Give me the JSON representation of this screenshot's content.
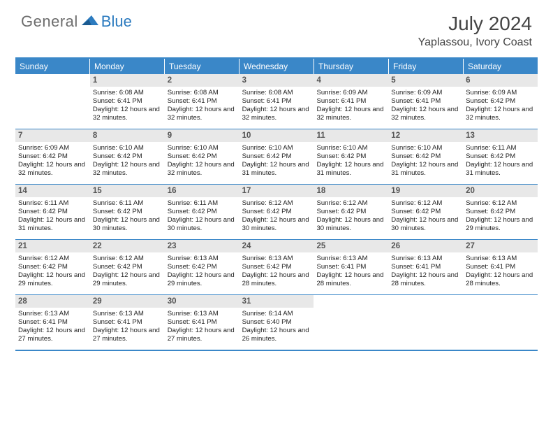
{
  "logo": {
    "general": "General",
    "blue": "Blue"
  },
  "title": "July 2024",
  "location": "Yaplassou, Ivory Coast",
  "colors": {
    "header_bg": "#3a87c8",
    "header_text": "#ffffff",
    "daynum_bg": "#e8e8e8",
    "border": "#3a87c8",
    "logo_gray": "#6d6d6d",
    "logo_blue": "#2c7bbf"
  },
  "weekdays": [
    "Sunday",
    "Monday",
    "Tuesday",
    "Wednesday",
    "Thursday",
    "Friday",
    "Saturday"
  ],
  "weeks": [
    [
      {
        "empty": true
      },
      {
        "day": "1",
        "sunrise": "Sunrise: 6:08 AM",
        "sunset": "Sunset: 6:41 PM",
        "daylight": "Daylight: 12 hours and 32 minutes."
      },
      {
        "day": "2",
        "sunrise": "Sunrise: 6:08 AM",
        "sunset": "Sunset: 6:41 PM",
        "daylight": "Daylight: 12 hours and 32 minutes."
      },
      {
        "day": "3",
        "sunrise": "Sunrise: 6:08 AM",
        "sunset": "Sunset: 6:41 PM",
        "daylight": "Daylight: 12 hours and 32 minutes."
      },
      {
        "day": "4",
        "sunrise": "Sunrise: 6:09 AM",
        "sunset": "Sunset: 6:41 PM",
        "daylight": "Daylight: 12 hours and 32 minutes."
      },
      {
        "day": "5",
        "sunrise": "Sunrise: 6:09 AM",
        "sunset": "Sunset: 6:41 PM",
        "daylight": "Daylight: 12 hours and 32 minutes."
      },
      {
        "day": "6",
        "sunrise": "Sunrise: 6:09 AM",
        "sunset": "Sunset: 6:42 PM",
        "daylight": "Daylight: 12 hours and 32 minutes."
      }
    ],
    [
      {
        "day": "7",
        "sunrise": "Sunrise: 6:09 AM",
        "sunset": "Sunset: 6:42 PM",
        "daylight": "Daylight: 12 hours and 32 minutes."
      },
      {
        "day": "8",
        "sunrise": "Sunrise: 6:10 AM",
        "sunset": "Sunset: 6:42 PM",
        "daylight": "Daylight: 12 hours and 32 minutes."
      },
      {
        "day": "9",
        "sunrise": "Sunrise: 6:10 AM",
        "sunset": "Sunset: 6:42 PM",
        "daylight": "Daylight: 12 hours and 32 minutes."
      },
      {
        "day": "10",
        "sunrise": "Sunrise: 6:10 AM",
        "sunset": "Sunset: 6:42 PM",
        "daylight": "Daylight: 12 hours and 31 minutes."
      },
      {
        "day": "11",
        "sunrise": "Sunrise: 6:10 AM",
        "sunset": "Sunset: 6:42 PM",
        "daylight": "Daylight: 12 hours and 31 minutes."
      },
      {
        "day": "12",
        "sunrise": "Sunrise: 6:10 AM",
        "sunset": "Sunset: 6:42 PM",
        "daylight": "Daylight: 12 hours and 31 minutes."
      },
      {
        "day": "13",
        "sunrise": "Sunrise: 6:11 AM",
        "sunset": "Sunset: 6:42 PM",
        "daylight": "Daylight: 12 hours and 31 minutes."
      }
    ],
    [
      {
        "day": "14",
        "sunrise": "Sunrise: 6:11 AM",
        "sunset": "Sunset: 6:42 PM",
        "daylight": "Daylight: 12 hours and 31 minutes."
      },
      {
        "day": "15",
        "sunrise": "Sunrise: 6:11 AM",
        "sunset": "Sunset: 6:42 PM",
        "daylight": "Daylight: 12 hours and 30 minutes."
      },
      {
        "day": "16",
        "sunrise": "Sunrise: 6:11 AM",
        "sunset": "Sunset: 6:42 PM",
        "daylight": "Daylight: 12 hours and 30 minutes."
      },
      {
        "day": "17",
        "sunrise": "Sunrise: 6:12 AM",
        "sunset": "Sunset: 6:42 PM",
        "daylight": "Daylight: 12 hours and 30 minutes."
      },
      {
        "day": "18",
        "sunrise": "Sunrise: 6:12 AM",
        "sunset": "Sunset: 6:42 PM",
        "daylight": "Daylight: 12 hours and 30 minutes."
      },
      {
        "day": "19",
        "sunrise": "Sunrise: 6:12 AM",
        "sunset": "Sunset: 6:42 PM",
        "daylight": "Daylight: 12 hours and 30 minutes."
      },
      {
        "day": "20",
        "sunrise": "Sunrise: 6:12 AM",
        "sunset": "Sunset: 6:42 PM",
        "daylight": "Daylight: 12 hours and 29 minutes."
      }
    ],
    [
      {
        "day": "21",
        "sunrise": "Sunrise: 6:12 AM",
        "sunset": "Sunset: 6:42 PM",
        "daylight": "Daylight: 12 hours and 29 minutes."
      },
      {
        "day": "22",
        "sunrise": "Sunrise: 6:12 AM",
        "sunset": "Sunset: 6:42 PM",
        "daylight": "Daylight: 12 hours and 29 minutes."
      },
      {
        "day": "23",
        "sunrise": "Sunrise: 6:13 AM",
        "sunset": "Sunset: 6:42 PM",
        "daylight": "Daylight: 12 hours and 29 minutes."
      },
      {
        "day": "24",
        "sunrise": "Sunrise: 6:13 AM",
        "sunset": "Sunset: 6:42 PM",
        "daylight": "Daylight: 12 hours and 28 minutes."
      },
      {
        "day": "25",
        "sunrise": "Sunrise: 6:13 AM",
        "sunset": "Sunset: 6:41 PM",
        "daylight": "Daylight: 12 hours and 28 minutes."
      },
      {
        "day": "26",
        "sunrise": "Sunrise: 6:13 AM",
        "sunset": "Sunset: 6:41 PM",
        "daylight": "Daylight: 12 hours and 28 minutes."
      },
      {
        "day": "27",
        "sunrise": "Sunrise: 6:13 AM",
        "sunset": "Sunset: 6:41 PM",
        "daylight": "Daylight: 12 hours and 28 minutes."
      }
    ],
    [
      {
        "day": "28",
        "sunrise": "Sunrise: 6:13 AM",
        "sunset": "Sunset: 6:41 PM",
        "daylight": "Daylight: 12 hours and 27 minutes."
      },
      {
        "day": "29",
        "sunrise": "Sunrise: 6:13 AM",
        "sunset": "Sunset: 6:41 PM",
        "daylight": "Daylight: 12 hours and 27 minutes."
      },
      {
        "day": "30",
        "sunrise": "Sunrise: 6:13 AM",
        "sunset": "Sunset: 6:41 PM",
        "daylight": "Daylight: 12 hours and 27 minutes."
      },
      {
        "day": "31",
        "sunrise": "Sunrise: 6:14 AM",
        "sunset": "Sunset: 6:40 PM",
        "daylight": "Daylight: 12 hours and 26 minutes."
      },
      {
        "empty": true
      },
      {
        "empty": true
      },
      {
        "empty": true
      }
    ]
  ]
}
